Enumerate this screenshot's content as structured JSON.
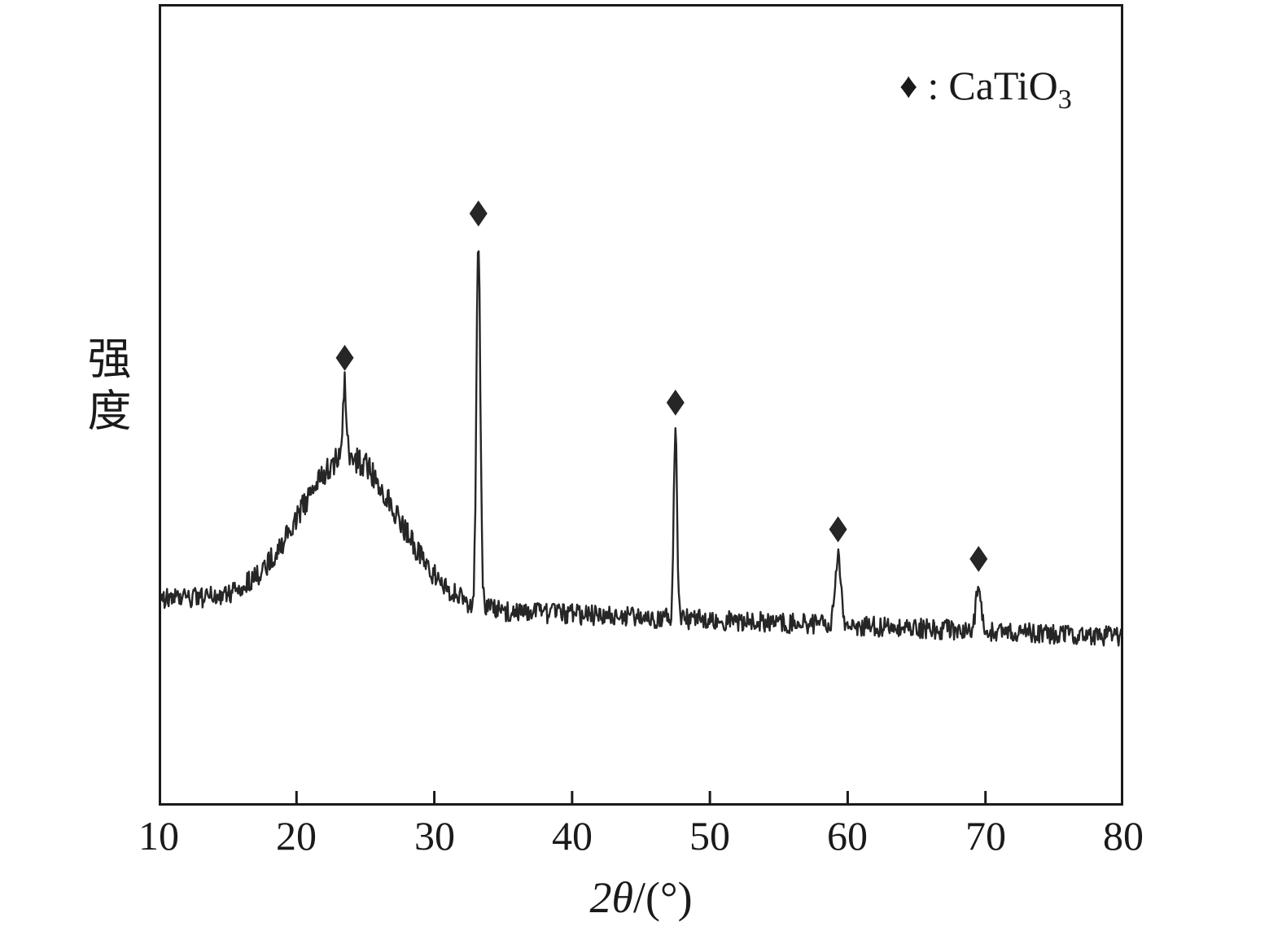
{
  "figure": {
    "background": "#ffffff",
    "frame_color": "#1a1a1a",
    "trace_color": "#262626"
  },
  "legend": {
    "marker": "♦",
    "colon": ":",
    "formula_base": "CaTiO",
    "formula_subscript": "3"
  },
  "axes": {
    "xlabel_main": "2θ",
    "xlabel_unit": "/(°)",
    "ylabel": "强度"
  },
  "chart_data": {
    "type": "line",
    "title": "",
    "xlabel": "2θ/(°)",
    "ylabel": "强度",
    "xlim": [
      10,
      80
    ],
    "x_ticks": [
      10,
      20,
      30,
      40,
      50,
      60,
      70,
      80
    ],
    "y_axis": "unlabeled intensity (arbitrary units), no y tick labels",
    "grid": false,
    "legend_position": "top-right",
    "legend_entries": [
      {
        "marker": "filled-diamond",
        "label": "CaTiO3"
      }
    ],
    "series_description": "XRD pattern: noisy baseline with a broad amorphous hump centered near 2θ≈24° plus sharp CaTiO3 diffraction peaks, each sharp peak marked with a filled diamond",
    "baseline": {
      "start_x": 10,
      "end_x": 80,
      "start_intensity": 0.259,
      "end_intensity": 0.211
    },
    "broad_hump": {
      "center": 23.8,
      "sigma": 3.6,
      "amplitude": 0.185
    },
    "peaks": [
      {
        "two_theta": 23.5,
        "amplitude": 0.09,
        "sigma": 0.12,
        "marked": true
      },
      {
        "two_theta": 33.2,
        "amplitude": 0.455,
        "sigma": 0.14,
        "marked": true
      },
      {
        "two_theta": 47.5,
        "amplitude": 0.235,
        "sigma": 0.12,
        "marked": true
      },
      {
        "two_theta": 59.3,
        "amplitude": 0.085,
        "sigma": 0.22,
        "marked": true
      },
      {
        "two_theta": 69.5,
        "amplitude": 0.055,
        "sigma": 0.18,
        "marked": true
      }
    ],
    "noise_amplitude": 0.012,
    "marker_offset_px": 34
  }
}
